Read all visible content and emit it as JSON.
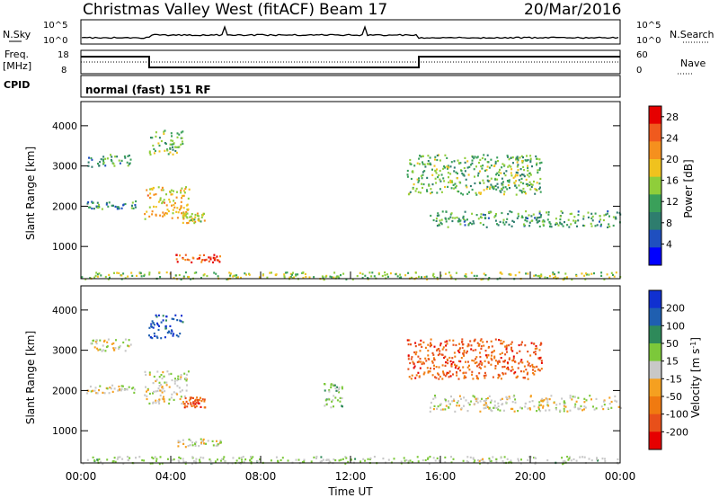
{
  "header": {
    "station": "Christmas Valley West (fitACF)",
    "beam": "Beam 17",
    "date": "20/Mar/2016"
  },
  "left_labels": {
    "nsky": "N.Sky",
    "freq": "Freq.",
    "freq_unit": "[MHz]",
    "cpid": "CPID"
  },
  "right_labels": {
    "nsearch": "N.Search",
    "nave": "Nave"
  },
  "strip_ticks": {
    "noise_left_top": "10^5",
    "noise_left_bottom": "10^0",
    "noise_right_top": "10^5",
    "noise_right_bottom": "10^0",
    "freq_left_top": "18",
    "freq_left_bottom": "8",
    "nave_right_top": "60",
    "nave_right_bottom": "0"
  },
  "cpid_text": "normal (fast) 151 RF",
  "colors": {
    "power_scale": [
      "#0000ff",
      "#1f4fbf",
      "#2e7d6e",
      "#3aa05a",
      "#8fce3a",
      "#f0c21e",
      "#f5901e",
      "#f05a1e",
      "#e60000"
    ],
    "velocity_scale": [
      "#1030d0",
      "#1f5fb0",
      "#2e8a5a",
      "#7cc83a",
      "#c8c8c8",
      "#f5a020",
      "#f07a10",
      "#e8501a",
      "#e60000"
    ]
  },
  "chart_data": [
    {
      "type": "heatmap",
      "panel": "power",
      "ylabel": "Slant Range [km]",
      "yticks": [
        "1000",
        "2000",
        "3000",
        "4000"
      ],
      "ylim": [
        200,
        4600
      ],
      "xlim": [
        0,
        24
      ],
      "xticks": [],
      "colorbar": {
        "label": "Power [dB]",
        "ticks": [
          "4",
          "8",
          "12",
          "16",
          "20",
          "24",
          "28"
        ],
        "range": [
          0,
          30
        ]
      },
      "regions": [
        {
          "t0": 0.3,
          "t1": 2.3,
          "r0": 3000,
          "r1": 3300,
          "value": 10
        },
        {
          "t0": 0.2,
          "t1": 2.5,
          "r0": 1950,
          "r1": 2150,
          "value": 9
        },
        {
          "t0": 2.8,
          "t1": 4.8,
          "r0": 1700,
          "r1": 2500,
          "value": 19
        },
        {
          "t0": 3.0,
          "t1": 4.5,
          "r0": 3300,
          "r1": 3900,
          "value": 14
        },
        {
          "t0": 4.5,
          "t1": 5.5,
          "r0": 1600,
          "r1": 1850,
          "value": 17
        },
        {
          "t0": 4.2,
          "t1": 6.2,
          "r0": 620,
          "r1": 820,
          "value": 26
        },
        {
          "t0": 14.5,
          "t1": 20.5,
          "r0": 2300,
          "r1": 3300,
          "value": 13
        },
        {
          "t0": 15.5,
          "t1": 24.0,
          "r0": 1500,
          "r1": 1900,
          "value": 11
        },
        {
          "t0": 0.0,
          "t1": 24.0,
          "r0": 200,
          "r1": 380,
          "value": 15
        }
      ]
    },
    {
      "type": "heatmap",
      "panel": "velocity",
      "ylabel": "Slant Range [km]",
      "xlabel": "Time UT",
      "yticks": [
        "1000",
        "2000",
        "3000",
        "4000"
      ],
      "ylim": [
        200,
        4600
      ],
      "xlim": [
        0,
        24
      ],
      "xticks": [
        "00:00",
        "04:00",
        "08:00",
        "12:00",
        "16:00",
        "20:00",
        "00:00"
      ],
      "colorbar": {
        "label": "Velocity [m s^-1]",
        "ticks": [
          "200",
          "100",
          "50",
          "15",
          "-15",
          "-50",
          "-100",
          "-200"
        ],
        "range": [
          -250,
          250
        ]
      },
      "regions": [
        {
          "t0": 0.3,
          "t1": 2.3,
          "r0": 3000,
          "r1": 3300,
          "value": 0
        },
        {
          "t0": 0.2,
          "t1": 2.5,
          "r0": 1950,
          "r1": 2150,
          "value": -5
        },
        {
          "t0": 2.8,
          "t1": 4.8,
          "r0": 1700,
          "r1": 2500,
          "value": 0
        },
        {
          "t0": 3.0,
          "t1": 4.5,
          "r0": 3300,
          "r1": 3900,
          "value": 180
        },
        {
          "t0": 4.5,
          "t1": 5.5,
          "r0": 1600,
          "r1": 1850,
          "value": -160
        },
        {
          "t0": 4.2,
          "t1": 6.2,
          "r0": 620,
          "r1": 820,
          "value": 0
        },
        {
          "t0": 10.8,
          "t1": 11.6,
          "r0": 1600,
          "r1": 2200,
          "value": 40
        },
        {
          "t0": 14.5,
          "t1": 20.5,
          "r0": 2300,
          "r1": 3300,
          "value": -150
        },
        {
          "t0": 15.5,
          "t1": 24.0,
          "r0": 1500,
          "r1": 1900,
          "value": 0
        },
        {
          "t0": 0.0,
          "t1": 24.0,
          "r0": 200,
          "r1": 380,
          "value": 30
        }
      ]
    }
  ]
}
